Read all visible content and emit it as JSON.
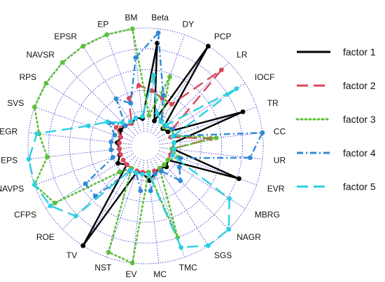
{
  "chart_data": {
    "type": "radar",
    "title": "",
    "axes": [
      "Beta",
      "DY",
      "PCP",
      "LR",
      "IOCF",
      "TR",
      "CC",
      "UR",
      "EVR",
      "MBRG",
      "NAGR",
      "SGS",
      "TMC",
      "MC",
      "EV",
      "NST",
      "TV",
      "ROE",
      "CFPS",
      "NAVPS",
      "EPS",
      "EGR",
      "SVS",
      "RPS",
      "NAVSR",
      "EPSR",
      "EP",
      "BM"
    ],
    "rings": 5,
    "grid": true,
    "grid_color": "#2626c8",
    "legend_position": "right",
    "series": [
      {
        "name": "factor 1",
        "color": "#000000",
        "dash": "solid",
        "markers": true,
        "values": [
          0.86,
          0.12,
          1.0,
          0.1,
          0.12,
          0.86,
          0.14,
          0.13,
          0.82,
          0.12,
          0.15,
          0.12,
          0.14,
          0.2,
          0.13,
          0.14,
          1.0,
          0.12,
          0.18,
          0.13,
          0.12,
          0.14,
          0.12,
          0.15,
          0.14,
          0.12,
          0.15,
          0.13
        ]
      },
      {
        "name": "factor 2",
        "color": "#d9475a",
        "dash": "long-dash",
        "markers": true,
        "values": [
          0.4,
          0.35,
          0.34,
          0.9,
          0.17,
          0.12,
          0.5,
          0.12,
          0.12,
          0.12,
          0.12,
          0.12,
          0.12,
          0.12,
          0.12,
          0.12,
          0.12,
          0.12,
          0.12,
          0.12,
          0.12,
          0.12,
          0.12,
          0.2,
          0.14,
          0.12,
          0.35,
          0.45
        ]
      },
      {
        "name": "factor 3",
        "color": "#5dc03a",
        "dash": "dotted",
        "markers": true,
        "values": [
          0.16,
          0.57,
          0.15,
          0.12,
          0.16,
          0.16,
          0.55,
          0.12,
          0.2,
          0.12,
          0.12,
          0.12,
          0.8,
          0.12,
          1.0,
          0.95,
          0.12,
          0.22,
          0.9,
          1.0,
          0.82,
          0.9,
          1.0,
          1.0,
          1.0,
          1.0,
          1.0,
          1.0
        ]
      },
      {
        "name": "factor 4",
        "color": "#2e8ad6",
        "dash": "dash-dot",
        "markers": true,
        "values": [
          0.96,
          0.38,
          0.15,
          0.14,
          0.17,
          0.15,
          1.0,
          0.88,
          0.22,
          0.25,
          0.34,
          0.15,
          0.15,
          0.3,
          0.3,
          0.14,
          0.15,
          0.55,
          0.55,
          0.2,
          0.2,
          0.2,
          0.18,
          0.28,
          0.14,
          0.4,
          0.3,
          0.72
        ]
      },
      {
        "name": "factor 5",
        "color": "#2ad0e2",
        "dash": "long-dash",
        "markers": true,
        "values": [
          0.55,
          0.2,
          0.14,
          0.15,
          0.9,
          0.14,
          0.14,
          0.14,
          0.14,
          0.82,
          1.0,
          1.0,
          0.9,
          0.14,
          0.14,
          0.14,
          0.14,
          0.82,
          0.95,
          1.0,
          1.0,
          0.92,
          0.45,
          0.3,
          0.18,
          0.14,
          0.15,
          0.15
        ]
      }
    ]
  }
}
